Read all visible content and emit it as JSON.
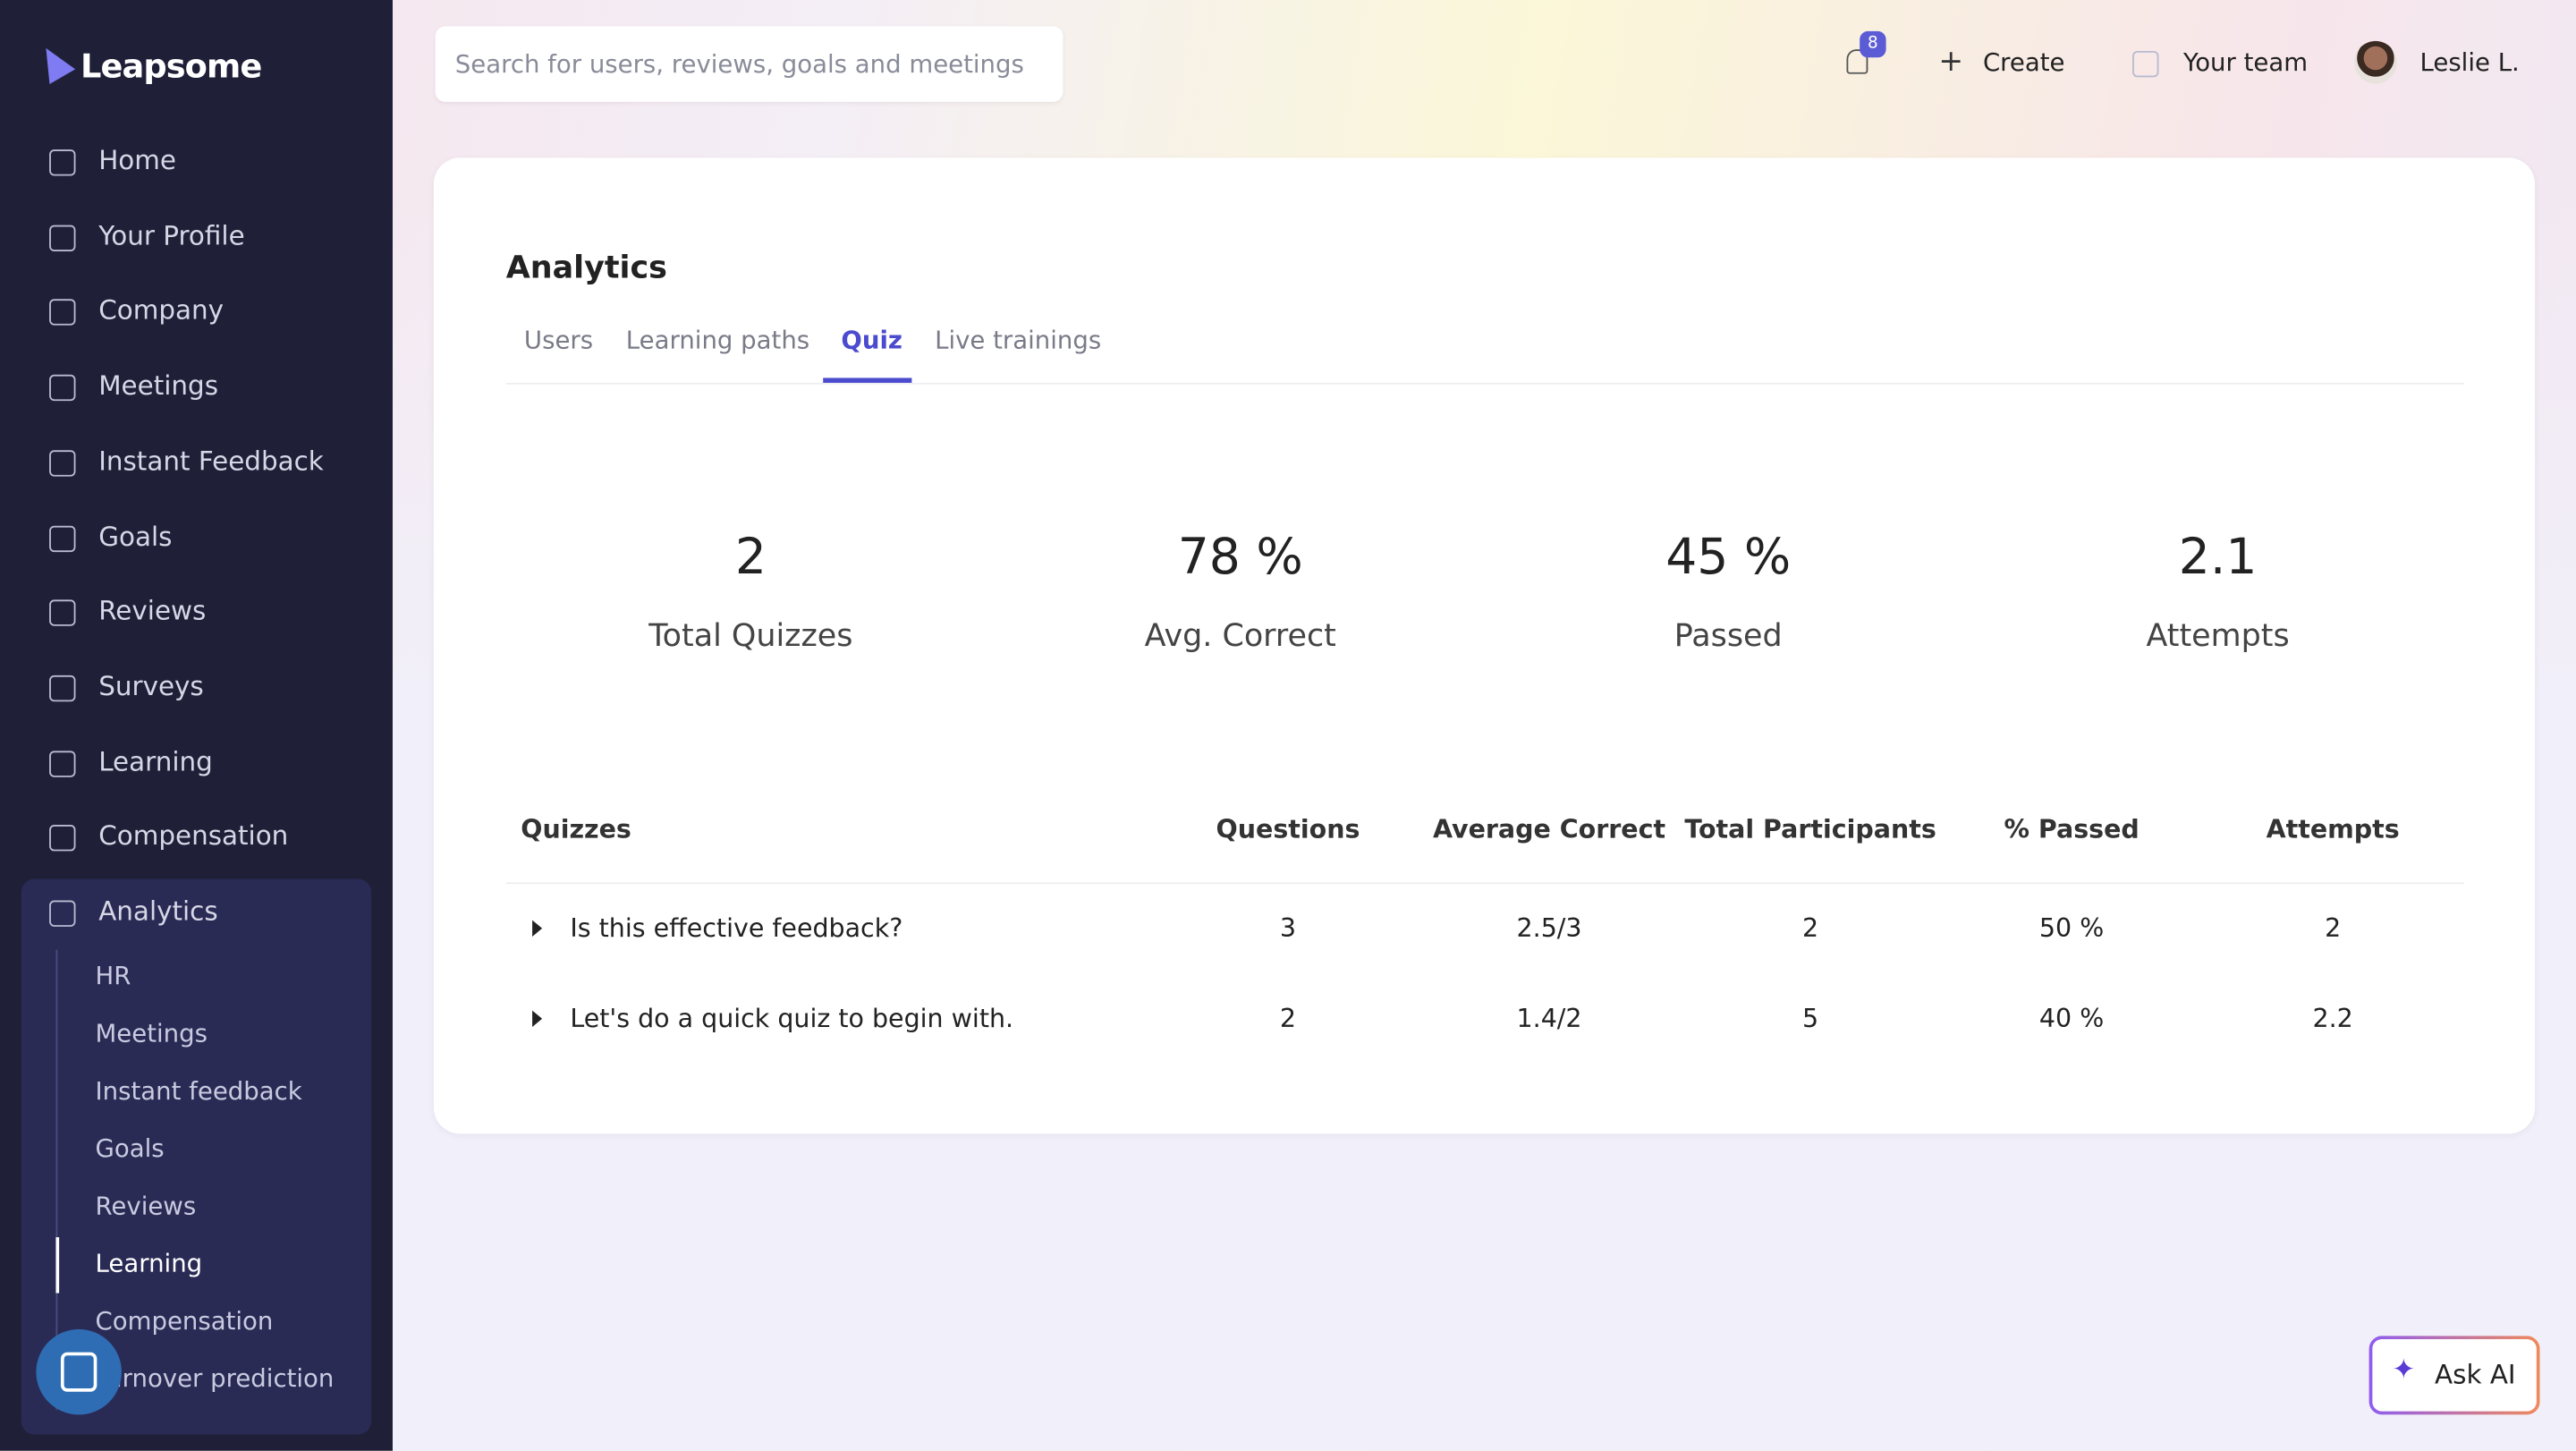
{
  "sidebar": {
    "logo": "Leapsome",
    "nav": [
      "Home",
      "Your Profile",
      "Company",
      "Meetings",
      "Instant Feedback",
      "Goals",
      "Reviews",
      "Surveys",
      "Learning",
      "Compensation",
      "Analytics"
    ],
    "subnav": [
      "HR",
      "Meetings",
      "Instant feedback",
      "Goals",
      "Reviews",
      "Learning",
      "Compensation",
      "Turnover prediction"
    ]
  },
  "header": {
    "search_placeholder": "Search for users, reviews, goals and meetings",
    "notifications": "8",
    "create": "Create",
    "team": "Your team",
    "user": "Leslie L."
  },
  "content": {
    "title": "Analytics",
    "tabs": [
      "Users",
      "Learning paths",
      "Quiz",
      "Live trainings"
    ],
    "stats": [
      {
        "value": "2",
        "label": "Total Quizzes"
      },
      {
        "value": "78 %",
        "label": "Avg. Correct"
      },
      {
        "value": "45 %",
        "label": "Passed"
      },
      {
        "value": "2.1",
        "label": "Attempts"
      }
    ],
    "table": {
      "columns": [
        "Quizzes",
        "Questions",
        "Average Correct",
        "Total Participants",
        "% Passed",
        "Attempts"
      ],
      "rows": [
        [
          "Is this effective feedback?",
          "3",
          "2.5/3",
          "2",
          "50 %",
          "2"
        ],
        [
          "Let's do a quick quiz to begin with.",
          "2",
          "1.4/2",
          "5",
          "40 %",
          "2.2"
        ]
      ]
    }
  },
  "ask_ai": "Ask AI"
}
